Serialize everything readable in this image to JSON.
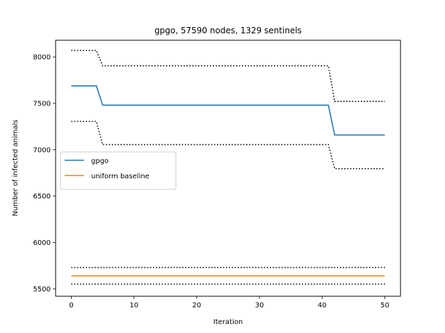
{
  "chart_data": {
    "type": "line",
    "title": "gpgo, 57590 nodes, 1329 sentinels",
    "xlabel": "Iteration",
    "ylabel": "Number of infected animals",
    "xlim": [
      -2.5,
      52.5
    ],
    "ylim": [
      5420,
      8180
    ],
    "x_ticks": [
      0,
      10,
      20,
      30,
      40,
      50
    ],
    "y_ticks": [
      5500,
      6000,
      6500,
      7000,
      7500,
      8000
    ],
    "grid": false,
    "legend_position": "center-left",
    "series": [
      {
        "name": "gpgo",
        "color": "#1f77b4",
        "style": "solid",
        "x": [
          0,
          4,
          5,
          41,
          42,
          50
        ],
        "y": [
          7688,
          7688,
          7480,
          7480,
          7158,
          7158
        ]
      },
      {
        "name": "uniform baseline",
        "color": "#ff7f0e",
        "style": "solid",
        "x": [
          0,
          50
        ],
        "y": [
          5640,
          5640
        ]
      }
    ],
    "bands": [
      {
        "color": "#000000",
        "style": "dotted",
        "x": [
          0,
          4,
          5,
          41,
          42,
          50
        ],
        "y": [
          8070,
          8070,
          7905,
          7905,
          7520,
          7520
        ]
      },
      {
        "color": "#000000",
        "style": "dotted",
        "x": [
          0,
          4,
          5,
          41,
          42,
          50
        ],
        "y": [
          7305,
          7305,
          7055,
          7055,
          6795,
          6795
        ]
      },
      {
        "color": "#000000",
        "style": "dotted",
        "x": [
          0,
          50
        ],
        "y": [
          5730,
          5730
        ]
      },
      {
        "color": "#000000",
        "style": "dotted",
        "x": [
          0,
          50
        ],
        "y": [
          5550,
          5550
        ]
      }
    ]
  }
}
